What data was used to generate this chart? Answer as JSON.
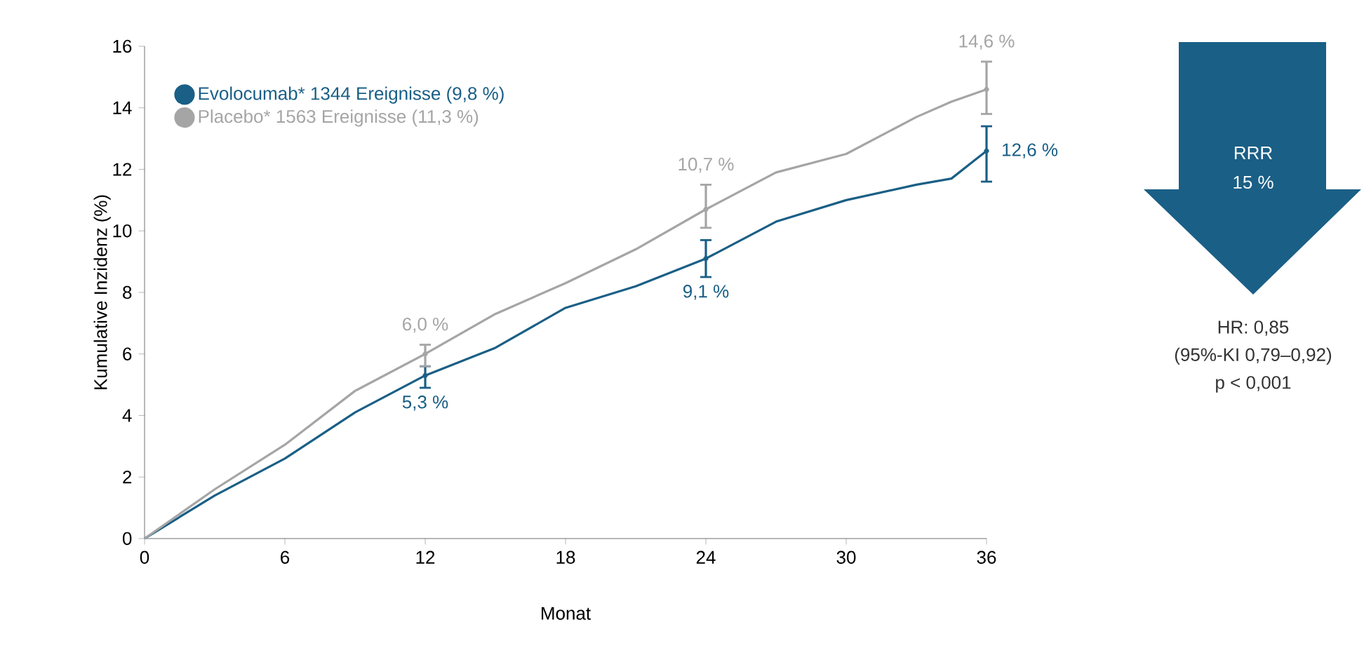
{
  "chart_data": {
    "type": "line",
    "xlabel": "Monat",
    "ylabel": "Kumulative Inzidenz (%)",
    "xlim": [
      0,
      36
    ],
    "xticks": [
      0,
      6,
      12,
      18,
      24,
      30,
      36
    ],
    "ylim": [
      0,
      16
    ],
    "yticks": [
      0,
      2,
      4,
      6,
      8,
      10,
      12,
      14,
      16
    ],
    "legend": "top left",
    "series": [
      {
        "name": "Evolocumab* 1344 Ereignisse (9,8 %)",
        "color": "#1a5f86",
        "x": [
          0,
          3,
          6,
          9,
          12,
          15,
          18,
          21,
          24,
          27,
          30,
          33,
          34.5,
          35.5,
          36
        ],
        "values": [
          0,
          1.4,
          2.6,
          4.1,
          5.3,
          6.2,
          7.5,
          8.2,
          9.1,
          10.3,
          11.0,
          11.5,
          11.7,
          12.3,
          12.6
        ],
        "errors": [
          null,
          null,
          null,
          null,
          [
            4.9,
            5.6
          ],
          null,
          null,
          null,
          [
            8.5,
            9.7
          ],
          null,
          null,
          null,
          null,
          null,
          [
            11.6,
            13.4
          ]
        ],
        "value_labels": [
          null,
          null,
          null,
          null,
          "5,3 %",
          null,
          null,
          null,
          "9,1 %",
          null,
          null,
          null,
          null,
          null,
          "12,6 %"
        ]
      },
      {
        "name": "Placebo* 1563 Ereignisse (11,3 %)",
        "color": "#a5a5a5",
        "x": [
          0,
          3,
          6,
          9,
          12,
          15,
          18,
          21,
          24,
          27,
          30,
          33,
          34.5,
          36
        ],
        "values": [
          0,
          1.6,
          3.05,
          4.8,
          6.0,
          7.3,
          8.3,
          9.4,
          10.7,
          11.9,
          12.5,
          13.7,
          14.2,
          14.6
        ],
        "errors": [
          null,
          null,
          null,
          null,
          [
            5.6,
            6.3
          ],
          null,
          null,
          null,
          [
            10.1,
            11.5
          ],
          null,
          null,
          null,
          null,
          [
            13.8,
            15.5
          ]
        ],
        "value_labels": [
          null,
          null,
          null,
          null,
          "6,0 %",
          null,
          null,
          null,
          "10,7 %",
          null,
          null,
          null,
          null,
          "14,6 %"
        ]
      }
    ],
    "annotations": [
      "RRR",
      "15 %",
      "HR: 0,85",
      "(95%-KI 0,79–0,92)",
      "p < 0,001"
    ]
  }
}
